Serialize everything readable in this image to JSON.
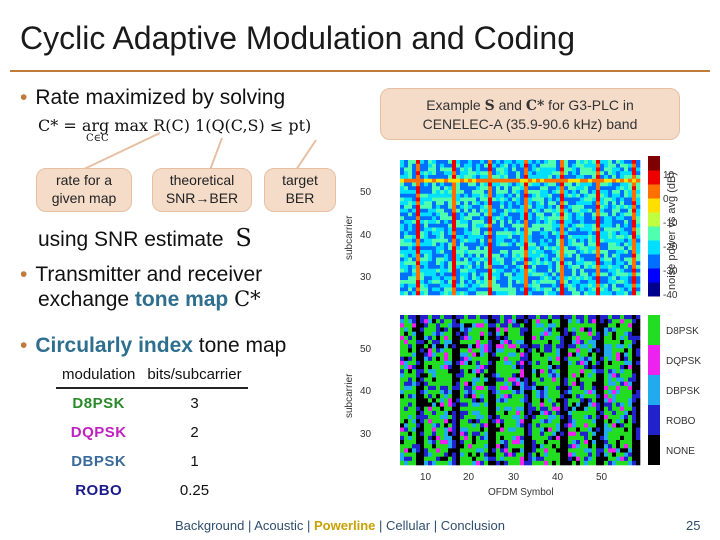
{
  "title": "Cyclic Adaptive Modulation and Coding",
  "bullets": {
    "b1": "Rate maximized by solving",
    "b1_sub": "using SNR estimate",
    "b2_line1": "Transmitter and receiver",
    "b2_line2_pre": "exchange ",
    "b2_line2_em": "tone map",
    "b3_pre": "Circularly ",
    "b3_em": "index",
    "b3_post": " tone map"
  },
  "math": {
    "optimization": "C* = arg max R(C) 1(Q(C,S) ≤ pt)",
    "argmax_sub": "C∈C",
    "S_symbol": "S",
    "Cstar_symbol": "C*"
  },
  "callouts": {
    "rate": "rate for a given map",
    "theoretical": "theoretical SNR→BER",
    "target": "target BER",
    "example_pre": "Example ",
    "example_S": "S",
    "example_mid": " and ",
    "example_C": "C*",
    "example_post": " for G3-PLC in",
    "example_line2": "CENELEC-A (35.9-90.6 kHz) band"
  },
  "table": {
    "headers": [
      "modulation",
      "bits/subcarrier"
    ],
    "rows": [
      {
        "mod": "D8PSK",
        "bits": "3",
        "color": "#2a8a2a"
      },
      {
        "mod": "DQPSK",
        "bits": "2",
        "color": "#c020c0"
      },
      {
        "mod": "DBPSK",
        "bits": "1",
        "color": "#3a6a9a"
      },
      {
        "mod": "ROBO",
        "bits": "0.25",
        "color": "#1a1a8a"
      }
    ]
  },
  "plots": {
    "ylabel": "subcarrier",
    "xlabel": "OFDM Symbol",
    "yticks": [
      "50",
      "40",
      "30"
    ],
    "xticks": [
      "10",
      "20",
      "30",
      "40",
      "50"
    ],
    "colorbar_label": "noise power vs avg (dB)",
    "colorbar_ticks": [
      "10",
      "0",
      "-10",
      "-20",
      "-30",
      "-40"
    ],
    "legend": [
      {
        "label": "D8PSK",
        "color": "#22dd22"
      },
      {
        "label": "DQPSK",
        "color": "#ee22ee"
      },
      {
        "label": "DBPSK",
        "color": "#22aaee"
      },
      {
        "label": "ROBO",
        "color": "#2222cc"
      },
      {
        "label": "NONE",
        "color": "#000000"
      }
    ]
  },
  "footer": {
    "items": [
      "Background",
      "Acoustic",
      "Powerline",
      "Cellular",
      "Conclusion"
    ],
    "active": "Powerline",
    "separator": "|"
  },
  "page_number": "25"
}
